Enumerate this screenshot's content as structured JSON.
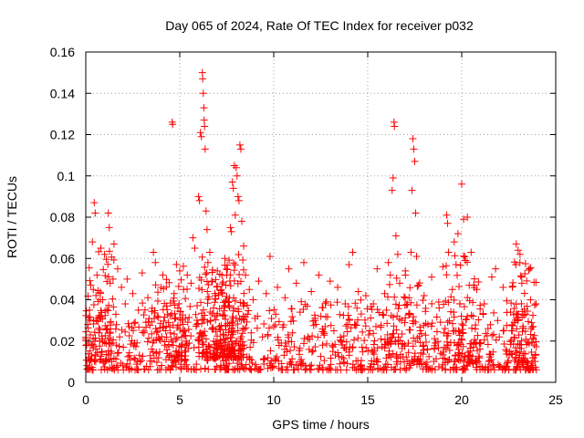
{
  "chart_data": {
    "type": "scatter",
    "title": "Day 065 of 2024, Rate Of TEC Index for receiver p032",
    "xlabel": "GPS time / hours",
    "ylabel": "ROTI / TECUs",
    "xlim": [
      0,
      25
    ],
    "ylim": [
      0,
      0.16
    ],
    "xticks": [
      0,
      5,
      10,
      15,
      20,
      25
    ],
    "yticks": [
      0,
      0.02,
      0.04,
      0.06,
      0.08,
      0.1,
      0.12,
      0.14,
      0.16
    ],
    "xtick_labels": [
      "0",
      "5",
      "10",
      "15",
      "20",
      "25"
    ],
    "ytick_labels": [
      "0",
      "0.02",
      "0.04",
      "0.06",
      "0.08",
      "0.1",
      "0.12",
      "0.14",
      "0.16"
    ],
    "grid": true,
    "marker": "+",
    "color": "#ff0000",
    "series": [
      {
        "name": "ROTI",
        "points": [
          [
            0.0,
            0.021
          ],
          [
            0.1,
            0.028
          ],
          [
            0.15,
            0.012
          ],
          [
            0.2,
            0.035
          ],
          [
            0.3,
            0.018
          ],
          [
            0.35,
            0.068
          ],
          [
            0.4,
            0.045
          ],
          [
            0.45,
            0.087
          ],
          [
            0.5,
            0.082
          ],
          [
            0.55,
            0.03
          ],
          [
            0.6,
            0.052
          ],
          [
            0.7,
            0.024
          ],
          [
            0.8,
            0.065
          ],
          [
            0.85,
            0.015
          ],
          [
            0.9,
            0.04
          ],
          [
            1.0,
            0.062
          ],
          [
            1.1,
            0.026
          ],
          [
            1.2,
            0.082
          ],
          [
            1.25,
            0.075
          ],
          [
            1.3,
            0.048
          ],
          [
            1.4,
            0.019
          ],
          [
            1.5,
            0.067
          ],
          [
            1.6,
            0.033
          ],
          [
            1.7,
            0.055
          ],
          [
            1.8,
            0.022
          ],
          [
            1.9,
            0.046
          ],
          [
            2.0,
            0.017
          ],
          [
            2.1,
            0.038
          ],
          [
            2.2,
            0.05
          ],
          [
            2.3,
            0.027
          ],
          [
            2.5,
            0.043
          ],
          [
            2.6,
            0.019
          ],
          [
            2.8,
            0.035
          ],
          [
            3.0,
            0.053
          ],
          [
            3.1,
            0.024
          ],
          [
            3.3,
            0.041
          ],
          [
            3.5,
            0.016
          ],
          [
            3.6,
            0.063
          ],
          [
            3.7,
            0.058
          ],
          [
            3.8,
            0.032
          ],
          [
            3.9,
            0.021
          ],
          [
            4.0,
            0.046
          ],
          [
            4.1,
            0.052
          ],
          [
            4.2,
            0.018
          ],
          [
            4.3,
            0.037
          ],
          [
            4.4,
            0.029
          ],
          [
            4.6,
            0.126
          ],
          [
            4.62,
            0.125
          ],
          [
            4.7,
            0.043
          ],
          [
            4.8,
            0.015
          ],
          [
            4.9,
            0.036
          ],
          [
            5.0,
            0.054
          ],
          [
            5.1,
            0.022
          ],
          [
            5.2,
            0.045
          ],
          [
            5.3,
            0.031
          ],
          [
            5.4,
            0.052
          ],
          [
            5.5,
            0.019
          ],
          [
            5.6,
            0.048
          ],
          [
            5.7,
            0.07
          ],
          [
            5.8,
            0.065
          ],
          [
            5.9,
            0.028
          ],
          [
            6.0,
            0.09
          ],
          [
            6.05,
            0.088
          ],
          [
            6.1,
            0.121
          ],
          [
            6.15,
            0.119
          ],
          [
            6.2,
            0.15
          ],
          [
            6.22,
            0.147
          ],
          [
            6.25,
            0.14
          ],
          [
            6.28,
            0.133
          ],
          [
            6.3,
            0.127
          ],
          [
            6.32,
            0.124
          ],
          [
            6.35,
            0.113
          ],
          [
            6.4,
            0.083
          ],
          [
            6.45,
            0.074
          ],
          [
            6.5,
            0.058
          ],
          [
            6.6,
            0.063
          ],
          [
            6.7,
            0.049
          ],
          [
            6.8,
            0.036
          ],
          [
            6.9,
            0.042
          ],
          [
            7.0,
            0.054
          ],
          [
            7.1,
            0.027
          ],
          [
            7.2,
            0.045
          ],
          [
            7.3,
            0.018
          ],
          [
            7.4,
            0.06
          ],
          [
            7.5,
            0.052
          ],
          [
            7.6,
            0.039
          ],
          [
            7.7,
            0.075
          ],
          [
            7.75,
            0.073
          ],
          [
            7.8,
            0.097
          ],
          [
            7.85,
            0.094
          ],
          [
            7.9,
            0.105
          ],
          [
            7.95,
            0.081
          ],
          [
            8.0,
            0.104
          ],
          [
            8.05,
            0.1
          ],
          [
            8.1,
            0.09
          ],
          [
            8.15,
            0.088
          ],
          [
            8.2,
            0.115
          ],
          [
            8.25,
            0.113
          ],
          [
            8.3,
            0.078
          ],
          [
            8.4,
            0.066
          ],
          [
            8.5,
            0.052
          ],
          [
            8.6,
            0.033
          ],
          [
            8.7,
            0.045
          ],
          [
            8.8,
            0.024
          ],
          [
            8.9,
            0.04
          ],
          [
            9.0,
            0.031
          ],
          [
            9.2,
            0.049
          ],
          [
            9.4,
            0.022
          ],
          [
            9.6,
            0.043
          ],
          [
            9.8,
            0.061
          ],
          [
            10.0,
            0.027
          ],
          [
            10.2,
            0.046
          ],
          [
            10.4,
            0.019
          ],
          [
            10.6,
            0.041
          ],
          [
            10.8,
            0.055
          ],
          [
            11.0,
            0.024
          ],
          [
            11.2,
            0.048
          ],
          [
            11.4,
            0.034
          ],
          [
            11.6,
            0.058
          ],
          [
            11.8,
            0.021
          ],
          [
            12.0,
            0.044
          ],
          [
            12.2,
            0.03
          ],
          [
            12.4,
            0.052
          ],
          [
            12.6,
            0.018
          ],
          [
            12.8,
            0.039
          ],
          [
            13.0,
            0.049
          ],
          [
            13.2,
            0.025
          ],
          [
            13.4,
            0.046
          ],
          [
            13.6,
            0.02
          ],
          [
            13.8,
            0.038
          ],
          [
            14.0,
            0.057
          ],
          [
            14.2,
            0.063
          ],
          [
            14.3,
            0.028
          ],
          [
            14.5,
            0.044
          ],
          [
            14.7,
            0.017
          ],
          [
            14.9,
            0.042
          ],
          [
            15.1,
            0.025
          ],
          [
            15.3,
            0.038
          ],
          [
            15.5,
            0.055
          ],
          [
            15.7,
            0.021
          ],
          [
            15.9,
            0.043
          ],
          [
            16.0,
            0.035
          ],
          [
            16.1,
            0.058
          ],
          [
            16.2,
            0.052
          ],
          [
            16.3,
            0.093
          ],
          [
            16.35,
            0.099
          ],
          [
            16.4,
            0.126
          ],
          [
            16.42,
            0.124
          ],
          [
            16.5,
            0.071
          ],
          [
            16.6,
            0.062
          ],
          [
            16.7,
            0.048
          ],
          [
            16.8,
            0.03
          ],
          [
            17.0,
            0.054
          ],
          [
            17.2,
            0.041
          ],
          [
            17.3,
            0.063
          ],
          [
            17.35,
            0.093
          ],
          [
            17.4,
            0.118
          ],
          [
            17.45,
            0.113
          ],
          [
            17.5,
            0.107
          ],
          [
            17.55,
            0.082
          ],
          [
            17.6,
            0.061
          ],
          [
            17.7,
            0.047
          ],
          [
            17.8,
            0.025
          ],
          [
            18.0,
            0.042
          ],
          [
            18.2,
            0.028
          ],
          [
            18.4,
            0.051
          ],
          [
            18.6,
            0.019
          ],
          [
            18.8,
            0.036
          ],
          [
            19.0,
            0.056
          ],
          [
            19.2,
            0.081
          ],
          [
            19.25,
            0.077
          ],
          [
            19.3,
            0.063
          ],
          [
            19.5,
            0.045
          ],
          [
            19.6,
            0.068
          ],
          [
            19.7,
            0.057
          ],
          [
            19.8,
            0.072
          ],
          [
            19.9,
            0.038
          ],
          [
            20.0,
            0.096
          ],
          [
            20.1,
            0.079
          ],
          [
            20.2,
            0.059
          ],
          [
            20.3,
            0.08
          ],
          [
            20.4,
            0.047
          ],
          [
            20.5,
            0.063
          ],
          [
            20.6,
            0.032
          ],
          [
            20.8,
            0.045
          ],
          [
            21.0,
            0.019
          ],
          [
            21.2,
            0.038
          ],
          [
            21.4,
            0.026
          ],
          [
            21.6,
            0.051
          ],
          [
            21.8,
            0.055
          ],
          [
            22.0,
            0.022
          ],
          [
            22.2,
            0.046
          ],
          [
            22.4,
            0.015
          ],
          [
            22.6,
            0.034
          ],
          [
            22.8,
            0.029
          ],
          [
            22.9,
            0.067
          ],
          [
            23.0,
            0.064
          ],
          [
            23.1,
            0.062
          ],
          [
            23.2,
            0.048
          ],
          [
            23.4,
            0.033
          ],
          [
            23.6,
            0.055
          ],
          [
            23.8,
            0.027
          ],
          [
            23.95,
            0.038
          ]
        ],
        "background": [
          [
            0.0,
            24.0,
            0.006,
            0.04,
            900,
            11
          ],
          [
            6.0,
            8.5,
            0.012,
            0.062,
            220,
            23
          ],
          [
            0.0,
            1.5,
            0.01,
            0.065,
            80,
            37
          ],
          [
            3.5,
            5.5,
            0.01,
            0.058,
            80,
            41
          ],
          [
            19.0,
            21.0,
            0.01,
            0.062,
            70,
            53
          ],
          [
            16.0,
            18.0,
            0.01,
            0.055,
            60,
            59
          ],
          [
            22.6,
            24.0,
            0.01,
            0.06,
            60,
            61
          ]
        ]
      }
    ]
  }
}
